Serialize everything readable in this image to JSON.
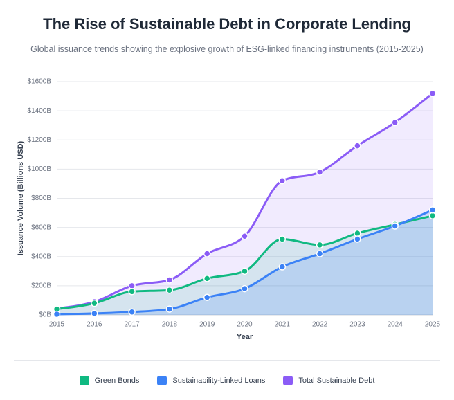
{
  "chart_data": {
    "type": "area_line",
    "title": "The Rise of Sustainable Debt in Corporate Lending",
    "subtitle": "Global issuance trends showing the explosive growth of ESG-linked financing instruments (2015-2025)",
    "x_label": "Year",
    "y_label": "Issuance Volume (Billions USD)",
    "categories": [
      "2015",
      "2016",
      "2017",
      "2018",
      "2019",
      "2020",
      "2021",
      "2022",
      "2023",
      "2024",
      "2025"
    ],
    "series": [
      {
        "name": "Green Bonds",
        "color": "#10b981",
        "values": [
          40,
          80,
          160,
          170,
          250,
          300,
          520,
          480,
          560,
          620,
          680
        ]
      },
      {
        "name": "Sustainability-Linked Loans",
        "color": "#3b82f6",
        "values": [
          5,
          10,
          20,
          40,
          120,
          180,
          330,
          420,
          520,
          610,
          720
        ]
      },
      {
        "name": "Total Sustainable Debt",
        "color": "#8b5cf6",
        "values": [
          45,
          90,
          200,
          240,
          420,
          540,
          920,
          980,
          1160,
          1320,
          1520
        ]
      }
    ],
    "ylim": [
      0,
      1600
    ],
    "yticks": [
      {
        "value": 0,
        "label": "$0B"
      },
      {
        "value": 200,
        "label": "$200B"
      },
      {
        "value": 400,
        "label": "$400B"
      },
      {
        "value": 600,
        "label": "$600B"
      },
      {
        "value": 800,
        "label": "$800B"
      },
      {
        "value": 1000,
        "label": "$1000B"
      },
      {
        "value": 1200,
        "label": "$1200B"
      },
      {
        "value": 1400,
        "label": "$1400B"
      },
      {
        "value": 1600,
        "label": "$1600B"
      }
    ],
    "grid": true,
    "legend": "bottom"
  }
}
